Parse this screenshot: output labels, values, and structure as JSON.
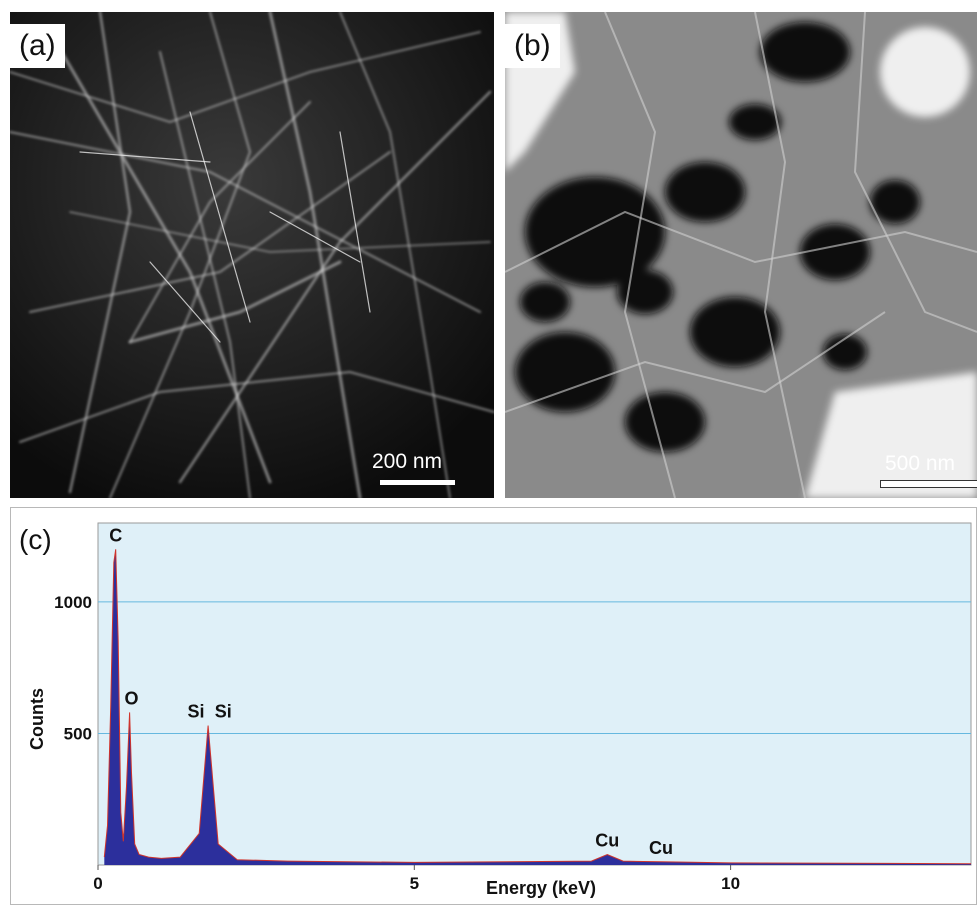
{
  "panel_a": {
    "label": "(a)",
    "scale_label": "200 nm"
  },
  "panel_b": {
    "label": "(b)",
    "scale_label": "500 nm"
  },
  "panel_c": {
    "label": "(c)",
    "chart_data": {
      "type": "line",
      "xlabel": "Energy (keV)",
      "ylabel": "Counts",
      "xlim": [
        0,
        13.8
      ],
      "ylim": [
        0,
        1300
      ],
      "x_ticks": [
        0,
        5,
        10
      ],
      "y_ticks": [
        500,
        1000
      ],
      "grid": "horizontal",
      "x": [
        0.1,
        0.15,
        0.2,
        0.25,
        0.28,
        0.32,
        0.36,
        0.4,
        0.45,
        0.5,
        0.53,
        0.58,
        0.65,
        0.8,
        1.0,
        1.3,
        1.6,
        1.74,
        1.9,
        2.2,
        3,
        5,
        7.8,
        8.05,
        8.3,
        8.9,
        10,
        13.8
      ],
      "values": [
        30,
        150,
        600,
        1150,
        1200,
        850,
        200,
        90,
        300,
        580,
        350,
        80,
        40,
        30,
        25,
        30,
        120,
        530,
        80,
        20,
        15,
        10,
        15,
        40,
        15,
        12,
        8,
        5
      ],
      "annotations": [
        {
          "text": "C",
          "x": 0.28,
          "y": 1200
        },
        {
          "text": "O",
          "x": 0.53,
          "y": 580
        },
        {
          "text": "Si",
          "x": 1.55,
          "y": 530
        },
        {
          "text": "Si",
          "x": 1.98,
          "y": 530
        },
        {
          "text": "Cu",
          "x": 8.05,
          "y": 40
        },
        {
          "text": "Cu",
          "x": 8.9,
          "y": 12
        }
      ],
      "colors": {
        "plot_background": "#dff0f8",
        "fill": "#2c2f9c",
        "peak_stroke": "#d0342c",
        "grid": "#66b8df"
      }
    }
  }
}
